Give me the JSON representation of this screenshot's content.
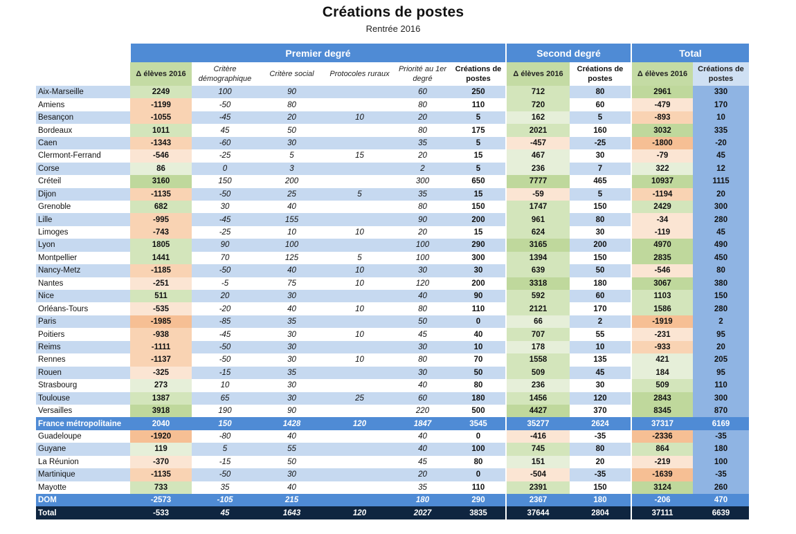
{
  "title": "Créations de postes",
  "subtitle": "Rentrée 2016",
  "groups": {
    "premier": "Premier degré",
    "second": "Second degré",
    "total": "Total"
  },
  "headers": {
    "p1": "Δ élèves 2016",
    "p2": "Critère démographique",
    "p3": "Critère social",
    "p4": "Protocoles ruraux",
    "p5": "Priorité au 1er degré",
    "p6": "Créations de postes",
    "s1": "Δ élèves 2016",
    "s2": "Créations de postes",
    "t1": "Δ élèves 2016",
    "t2": "Créations de postes"
  },
  "colors": {
    "header_blue": "#4f8bd5",
    "row_blue": "#c6d9f0",
    "total_col": "#8fb4e3",
    "green": "#bfd89c",
    "orange": "#f6bf94",
    "dark_navy": "#0f2540"
  },
  "rows": [
    {
      "type": "row",
      "name": "Aix-Marseille",
      "p1": "2249",
      "p2": "100",
      "p3": "90",
      "p4": "",
      "p5": "60",
      "p6": "250",
      "s1": "712",
      "s2": "80",
      "t1": "2961",
      "t2": "330"
    },
    {
      "type": "row",
      "name": "Amiens",
      "p1": "-1199",
      "p2": "-50",
      "p3": "80",
      "p4": "",
      "p5": "80",
      "p6": "110",
      "s1": "720",
      "s2": "60",
      "t1": "-479",
      "t2": "170"
    },
    {
      "type": "row",
      "name": "Besançon",
      "p1": "-1055",
      "p2": "-45",
      "p3": "20",
      "p4": "10",
      "p5": "20",
      "p6": "5",
      "s1": "162",
      "s2": "5",
      "t1": "-893",
      "t2": "10"
    },
    {
      "type": "row",
      "name": "Bordeaux",
      "p1": "1011",
      "p2": "45",
      "p3": "50",
      "p4": "",
      "p5": "80",
      "p6": "175",
      "s1": "2021",
      "s2": "160",
      "t1": "3032",
      "t2": "335"
    },
    {
      "type": "row",
      "name": "Caen",
      "p1": "-1343",
      "p2": "-60",
      "p3": "30",
      "p4": "",
      "p5": "35",
      "p6": "5",
      "s1": "-457",
      "s2": "-25",
      "t1": "-1800",
      "t2": "-20"
    },
    {
      "type": "row",
      "name": "Clermont-Ferrand",
      "p1": "-546",
      "p2": "-25",
      "p3": "5",
      "p4": "15",
      "p5": "20",
      "p6": "15",
      "s1": "467",
      "s2": "30",
      "t1": "-79",
      "t2": "45"
    },
    {
      "type": "row",
      "name": "Corse",
      "p1": "86",
      "p2": "0",
      "p3": "3",
      "p4": "",
      "p5": "2",
      "p6": "5",
      "s1": "236",
      "s2": "7",
      "t1": "322",
      "t2": "12"
    },
    {
      "type": "row",
      "name": "Créteil",
      "p1": "3160",
      "p2": "150",
      "p3": "200",
      "p4": "",
      "p5": "300",
      "p6": "650",
      "s1": "7777",
      "s2": "465",
      "t1": "10937",
      "t2": "1115"
    },
    {
      "type": "row",
      "name": "Dijon",
      "p1": "-1135",
      "p2": "-50",
      "p3": "25",
      "p4": "5",
      "p5": "35",
      "p6": "15",
      "s1": "-59",
      "s2": "5",
      "t1": "-1194",
      "t2": "20"
    },
    {
      "type": "row",
      "name": "Grenoble",
      "p1": "682",
      "p2": "30",
      "p3": "40",
      "p4": "",
      "p5": "80",
      "p6": "150",
      "s1": "1747",
      "s2": "150",
      "t1": "2429",
      "t2": "300"
    },
    {
      "type": "row",
      "name": "Lille",
      "p1": "-995",
      "p2": "-45",
      "p3": "155",
      "p4": "",
      "p5": "90",
      "p6": "200",
      "s1": "961",
      "s2": "80",
      "t1": "-34",
      "t2": "280"
    },
    {
      "type": "row",
      "name": "Limoges",
      "p1": "-743",
      "p2": "-25",
      "p3": "10",
      "p4": "10",
      "p5": "20",
      "p6": "15",
      "s1": "624",
      "s2": "30",
      "t1": "-119",
      "t2": "45"
    },
    {
      "type": "row",
      "name": "Lyon",
      "p1": "1805",
      "p2": "90",
      "p3": "100",
      "p4": "",
      "p5": "100",
      "p6": "290",
      "s1": "3165",
      "s2": "200",
      "t1": "4970",
      "t2": "490"
    },
    {
      "type": "row",
      "name": "Montpellier",
      "p1": "1441",
      "p2": "70",
      "p3": "125",
      "p4": "5",
      "p5": "100",
      "p6": "300",
      "s1": "1394",
      "s2": "150",
      "t1": "2835",
      "t2": "450"
    },
    {
      "type": "row",
      "name": "Nancy-Metz",
      "p1": "-1185",
      "p2": "-50",
      "p3": "40",
      "p4": "10",
      "p5": "30",
      "p6": "30",
      "s1": "639",
      "s2": "50",
      "t1": "-546",
      "t2": "80"
    },
    {
      "type": "row",
      "name": "Nantes",
      "p1": "-251",
      "p2": "-5",
      "p3": "75",
      "p4": "10",
      "p5": "120",
      "p6": "200",
      "s1": "3318",
      "s2": "180",
      "t1": "3067",
      "t2": "380"
    },
    {
      "type": "row",
      "name": "Nice",
      "p1": "511",
      "p2": "20",
      "p3": "30",
      "p4": "",
      "p5": "40",
      "p6": "90",
      "s1": "592",
      "s2": "60",
      "t1": "1103",
      "t2": "150"
    },
    {
      "type": "row",
      "name": "Orléans-Tours",
      "p1": "-535",
      "p2": "-20",
      "p3": "40",
      "p4": "10",
      "p5": "80",
      "p6": "110",
      "s1": "2121",
      "s2": "170",
      "t1": "1586",
      "t2": "280"
    },
    {
      "type": "row",
      "name": "Paris",
      "p1": "-1985",
      "p2": "-85",
      "p3": "35",
      "p4": "",
      "p5": "50",
      "p6": "0",
      "s1": "66",
      "s2": "2",
      "t1": "-1919",
      "t2": "2"
    },
    {
      "type": "row",
      "name": "Poitiers",
      "p1": "-938",
      "p2": "-45",
      "p3": "30",
      "p4": "10",
      "p5": "45",
      "p6": "40",
      "s1": "707",
      "s2": "55",
      "t1": "-231",
      "t2": "95"
    },
    {
      "type": "row",
      "name": "Reims",
      "p1": "-1111",
      "p2": "-50",
      "p3": "30",
      "p4": "",
      "p5": "30",
      "p6": "10",
      "s1": "178",
      "s2": "10",
      "t1": "-933",
      "t2": "20"
    },
    {
      "type": "row",
      "name": "Rennes",
      "p1": "-1137",
      "p2": "-50",
      "p3": "30",
      "p4": "10",
      "p5": "80",
      "p6": "70",
      "s1": "1558",
      "s2": "135",
      "t1": "421",
      "t2": "205"
    },
    {
      "type": "row",
      "name": "Rouen",
      "p1": "-325",
      "p2": "-15",
      "p3": "35",
      "p4": "",
      "p5": "30",
      "p6": "50",
      "s1": "509",
      "s2": "45",
      "t1": "184",
      "t2": "95"
    },
    {
      "type": "row",
      "name": "Strasbourg",
      "p1": "273",
      "p2": "10",
      "p3": "30",
      "p4": "",
      "p5": "40",
      "p6": "80",
      "s1": "236",
      "s2": "30",
      "t1": "509",
      "t2": "110"
    },
    {
      "type": "row",
      "name": "Toulouse",
      "p1": "1387",
      "p2": "65",
      "p3": "30",
      "p4": "25",
      "p5": "60",
      "p6": "180",
      "s1": "1456",
      "s2": "120",
      "t1": "2843",
      "t2": "300"
    },
    {
      "type": "row",
      "name": "Versailles",
      "p1": "3918",
      "p2": "190",
      "p3": "90",
      "p4": "",
      "p5": "220",
      "p6": "500",
      "s1": "4427",
      "s2": "370",
      "t1": "8345",
      "t2": "870"
    },
    {
      "type": "sum",
      "name": "France métropolitaine",
      "p1": "2040",
      "p2": "150",
      "p3": "1428",
      "p4": "120",
      "p5": "1847",
      "p6": "3545",
      "s1": "35277",
      "s2": "2624",
      "t1": "37317",
      "t2": "6169"
    },
    {
      "type": "row",
      "name": "Guadeloupe",
      "p1": "-1920",
      "p2": "-80",
      "p3": "40",
      "p4": "",
      "p5": "40",
      "p6": "0",
      "s1": "-416",
      "s2": "-35",
      "t1": "-2336",
      "t2": "-35"
    },
    {
      "type": "row",
      "name": "Guyane",
      "p1": "119",
      "p2": "5",
      "p3": "55",
      "p4": "",
      "p5": "40",
      "p6": "100",
      "s1": "745",
      "s2": "80",
      "t1": "864",
      "t2": "180"
    },
    {
      "type": "row",
      "name": "La Réunion",
      "p1": "-370",
      "p2": "-15",
      "p3": "50",
      "p4": "",
      "p5": "45",
      "p6": "80",
      "s1": "151",
      "s2": "20",
      "t1": "-219",
      "t2": "100"
    },
    {
      "type": "row",
      "name": "Martinique",
      "p1": "-1135",
      "p2": "-50",
      "p3": "30",
      "p4": "",
      "p5": "20",
      "p6": "0",
      "s1": "-504",
      "s2": "-35",
      "t1": "-1639",
      "t2": "-35"
    },
    {
      "type": "row",
      "name": "Mayotte",
      "p1": "733",
      "p2": "35",
      "p3": "40",
      "p4": "",
      "p5": "35",
      "p6": "110",
      "s1": "2391",
      "s2": "150",
      "t1": "3124",
      "t2": "260"
    },
    {
      "type": "sum",
      "name": "DOM",
      "p1": "-2573",
      "p2": "-105",
      "p3": "215",
      "p4": "",
      "p5": "180",
      "p6": "290",
      "s1": "2367",
      "s2": "180",
      "t1": "-206",
      "t2": "470"
    },
    {
      "type": "grand",
      "name": "Total",
      "p1": "-533",
      "p2": "45",
      "p3": "1643",
      "p4": "120",
      "p5": "2027",
      "p6": "3835",
      "s1": "37644",
      "s2": "2804",
      "t1": "37111",
      "t2": "6639"
    }
  ]
}
